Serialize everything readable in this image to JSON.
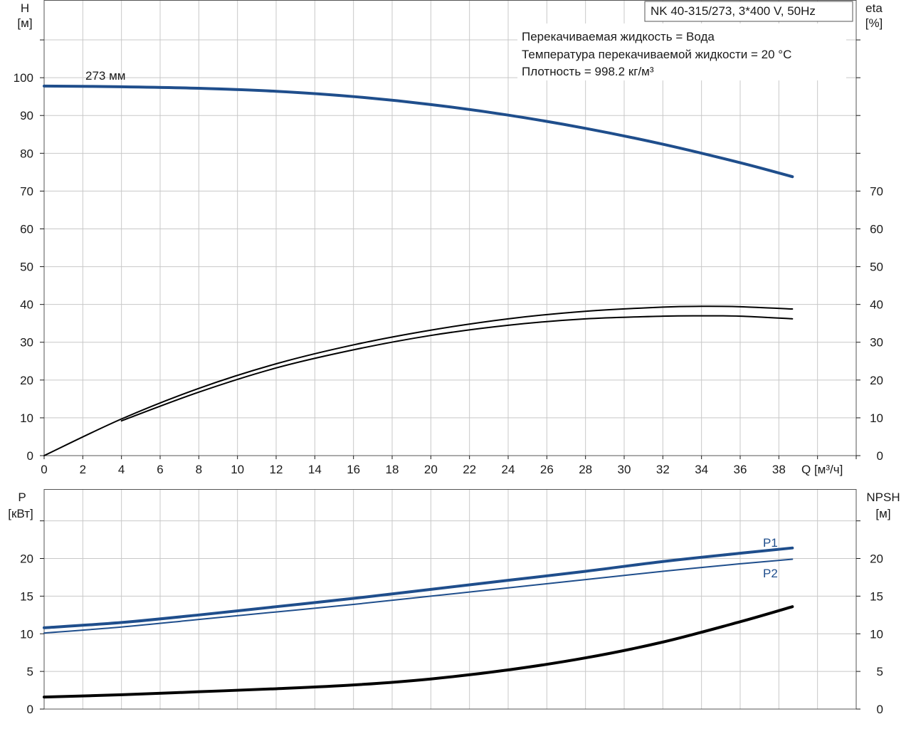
{
  "colors": {
    "blue": "#1f4e8c",
    "black": "#000000",
    "grid": "#c8c8c8"
  },
  "chart_data": [
    {
      "type": "line",
      "title": "NK 40-315/273, 3*400 V, 50Hz",
      "annotations": [
        "Перекачиваемая жидкость = Вода",
        "Температура перекачиваемой жидкости = 20 °C",
        "Плотность = 998.2 кг/м³"
      ],
      "xlabel": "Q [м³/ч]",
      "ylabel_left": [
        "H",
        "[м]"
      ],
      "ylabel_right": [
        "eta",
        "[%]"
      ],
      "xlim": [
        0,
        42
      ],
      "ylim_left": [
        0,
        120
      ],
      "ylim_right": [
        0,
        120
      ],
      "x_ticks": [
        "0",
        "2",
        "4",
        "6",
        "8",
        "10",
        "12",
        "14",
        "16",
        "18",
        "20",
        "22",
        "24",
        "26",
        "28",
        "30",
        "32",
        "34",
        "36",
        "38"
      ],
      "y_ticks_left": [
        "0",
        "10",
        "20",
        "30",
        "40",
        "50",
        "60",
        "70",
        "80",
        "90",
        "100"
      ],
      "y_ticks_right": [
        "0",
        "10",
        "20",
        "30",
        "40",
        "50",
        "60",
        "70"
      ],
      "grid": true,
      "series": [
        {
          "name": "273 мм",
          "axis": "left",
          "color": "#1f4e8c",
          "x": [
            0,
            4,
            8,
            12,
            16,
            20,
            24,
            28,
            32,
            36,
            38.7
          ],
          "y": [
            97.8,
            97.6,
            97.2,
            96.4,
            95.0,
            92.9,
            90.1,
            86.6,
            82.4,
            77.5,
            73.8
          ]
        },
        {
          "axis": "right",
          "color": "#000000",
          "x": [
            0,
            4,
            8,
            12,
            16,
            20,
            24,
            28,
            32,
            34,
            36,
            38.7
          ],
          "y": [
            0,
            9.7,
            17.8,
            24.3,
            29.3,
            33.2,
            36.2,
            38.2,
            39.3,
            39.5,
            39.4,
            38.8
          ]
        },
        {
          "axis": "right",
          "color": "#000000",
          "x": [
            4,
            8,
            12,
            16,
            20,
            24,
            28,
            32,
            34,
            36,
            38.7
          ],
          "y": [
            9.2,
            16.8,
            23.2,
            28.0,
            31.8,
            34.5,
            36.2,
            36.9,
            37.0,
            36.9,
            36.2
          ]
        }
      ]
    },
    {
      "type": "line",
      "xlim": [
        0,
        42
      ],
      "ylim_left": [
        0,
        25
      ],
      "ylim_right": [
        0,
        25
      ],
      "ylabel_left": [
        "P",
        "[кВт]"
      ],
      "ylabel_right": [
        "NPSH",
        "[м]"
      ],
      "y_ticks_left": [
        "0",
        "5",
        "10",
        "15",
        "20"
      ],
      "y_ticks_right": [
        "0",
        "5",
        "10",
        "15",
        "20"
      ],
      "grid": true,
      "series": [
        {
          "name": "P1",
          "axis": "left",
          "color": "#1f4e8c",
          "x": [
            0,
            4,
            8,
            12,
            16,
            20,
            24,
            28,
            32,
            36,
            38.7
          ],
          "y": [
            10.8,
            11.5,
            12.5,
            13.6,
            14.7,
            15.9,
            17.1,
            18.3,
            19.6,
            20.7,
            21.4
          ]
        },
        {
          "name": "P2",
          "axis": "left",
          "color": "#1f4e8c",
          "x": [
            0,
            4,
            8,
            12,
            16,
            20,
            24,
            28,
            32,
            36,
            38.7
          ],
          "y": [
            10.1,
            10.9,
            11.9,
            12.9,
            13.9,
            15.0,
            16.1,
            17.2,
            18.3,
            19.3,
            19.9
          ]
        },
        {
          "axis": "right",
          "color": "#000000",
          "x": [
            0,
            4,
            8,
            12,
            16,
            20,
            24,
            28,
            32,
            36,
            38.7
          ],
          "y": [
            1.6,
            1.9,
            2.3,
            2.7,
            3.2,
            4.0,
            5.2,
            6.8,
            8.9,
            11.6,
            13.6
          ]
        }
      ]
    }
  ]
}
